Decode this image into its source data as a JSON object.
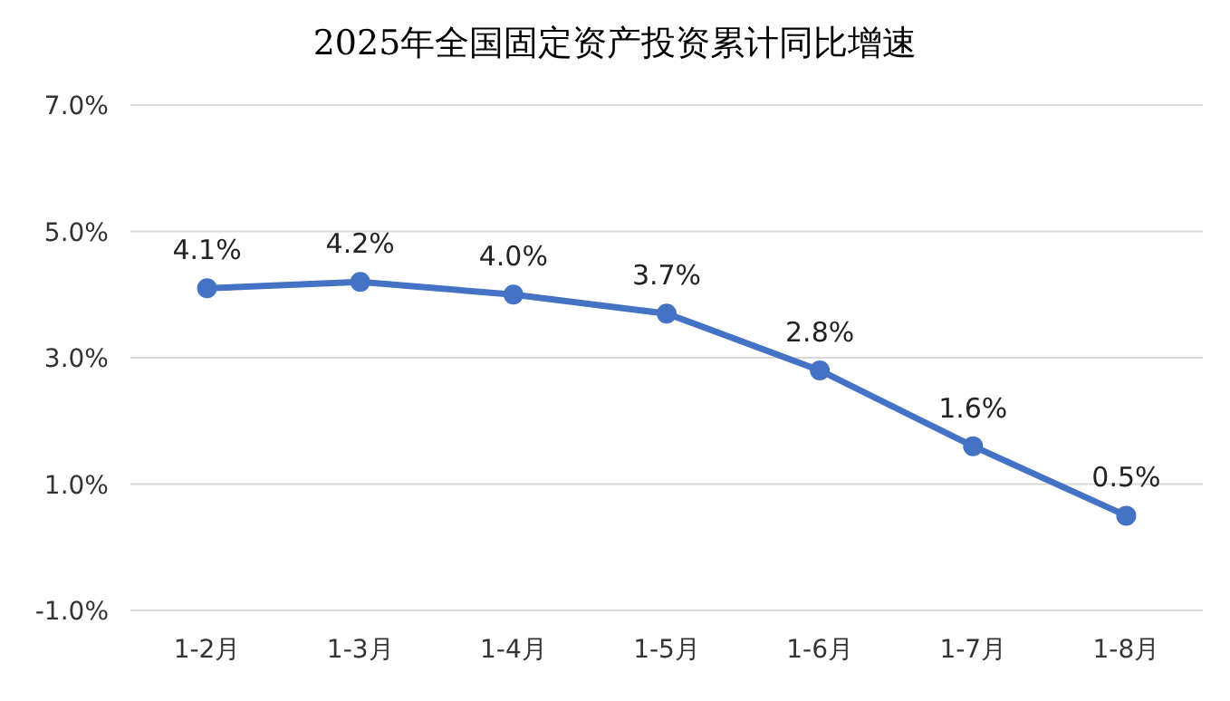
{
  "chart_data": {
    "type": "line",
    "title": "2025年全国固定资产投资累计同比增速",
    "categories": [
      "1-2月",
      "1-3月",
      "1-4月",
      "1-5月",
      "1-6月",
      "1-7月",
      "1-8月"
    ],
    "series": [
      {
        "color": "#4472c4",
        "values": [
          4.1,
          4.2,
          4.0,
          3.7,
          2.8,
          1.6,
          0.5
        ],
        "value_labels": [
          "4.1%",
          "4.2%",
          "4.0%",
          "3.7%",
          "2.8%",
          "1.6%",
          "0.5%"
        ]
      }
    ],
    "ylim": [
      -1,
      7
    ],
    "yticks": [
      {
        "value": -1,
        "label": "-1.0%"
      },
      {
        "value": 1,
        "label": "1.0%"
      },
      {
        "value": 3,
        "label": "3.0%"
      },
      {
        "value": 5,
        "label": "5.0%"
      },
      {
        "value": 7,
        "label": "7.0%"
      }
    ],
    "grid": "y",
    "marker": "circle"
  }
}
